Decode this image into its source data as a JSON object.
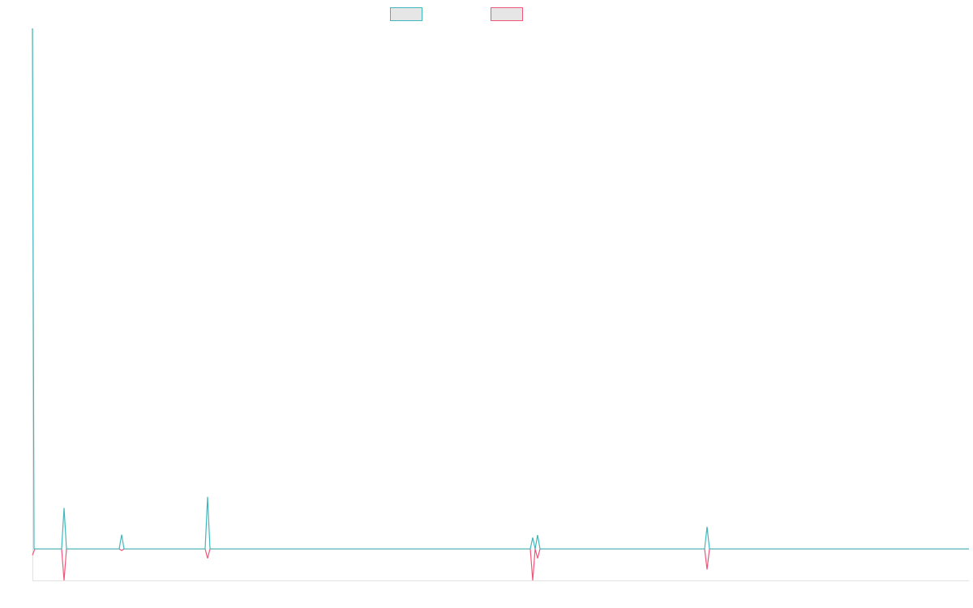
{
  "chart_data": {
    "type": "line",
    "xlim": [
      0,
      1155
    ],
    "ylim": [
      -1,
      16.5
    ],
    "series": [
      {
        "color": "#f2557a",
        "x": [
          0,
          3,
          36,
          39,
          42,
          107,
          110,
          113,
          213,
          216,
          219,
          614,
          617,
          620,
          623,
          626,
          829,
          832,
          835,
          1155
        ],
        "values": [
          -0.2,
          0,
          0,
          -1,
          0,
          0,
          -0.05,
          0,
          0,
          -0.3,
          0,
          0,
          -1,
          0,
          -0.3,
          0,
          0,
          -0.65,
          0,
          0
        ]
      },
      {
        "color": "#3fb8bd",
        "x": [
          0,
          2,
          36,
          39,
          42,
          107,
          110,
          113,
          213,
          216,
          219,
          614,
          617,
          620,
          623,
          626,
          829,
          832,
          835,
          1155
        ],
        "values": [
          16.5,
          0,
          0,
          1.3,
          0,
          0,
          0.45,
          0,
          0,
          1.65,
          0,
          0,
          0.36,
          0,
          0.44,
          0,
          0,
          0.7,
          0,
          0
        ]
      }
    ]
  }
}
